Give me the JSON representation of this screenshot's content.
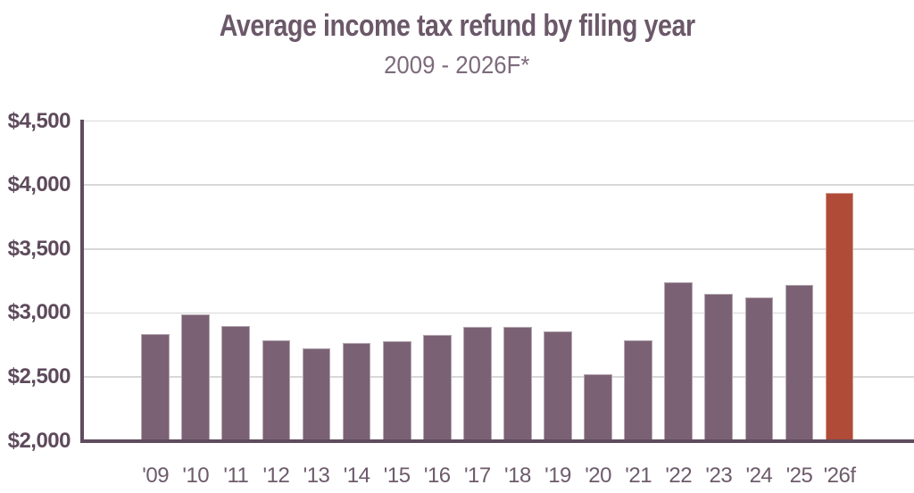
{
  "page": {
    "background": "#ffffff"
  },
  "chart": {
    "title": "Average income tax refund by filing year",
    "subtitle": "2009 - 2026F*"
  },
  "colors": {
    "title": "#6b5869",
    "subtitle": "#7d6b7c",
    "bar": "#7a6274",
    "highlight_bar": "#b04b38",
    "axis": "#5f4c5e",
    "gridline": "#d8d8d8",
    "ytick_label": "#5d4a5b",
    "xtick_label": "#6d5b6b"
  },
  "chart_data": {
    "type": "bar",
    "title": "Average income tax refund by filing year",
    "subtitle": "2009 - 2026F*",
    "xlabel": "",
    "ylabel": "",
    "categories": [
      "'09",
      "'10",
      "'11",
      "'12",
      "'13",
      "'14",
      "'15",
      "'16",
      "'17",
      "'18",
      "'19",
      "'20",
      "'21",
      "'22",
      "'23",
      "'24",
      "'25",
      "'26f"
    ],
    "values": [
      2833,
      2986,
      2895,
      2789,
      2726,
      2768,
      2782,
      2831,
      2893,
      2892,
      2854,
      2523,
      2788,
      3240,
      3151,
      3125,
      3216,
      3939
    ],
    "highlight_index": 17,
    "highlight_category": "'26f",
    "ylim": [
      2000,
      4500
    ],
    "yticks": [
      {
        "value": 4500,
        "label": "$4,500"
      },
      {
        "value": 4000,
        "label": "$4,000"
      },
      {
        "value": 3500,
        "label": "$3,500"
      },
      {
        "value": 3000,
        "label": "$3,000"
      },
      {
        "value": 2500,
        "label": "$2,500"
      },
      {
        "value": 2000,
        "label": "$2,000"
      }
    ],
    "grid": true,
    "legend": false
  }
}
